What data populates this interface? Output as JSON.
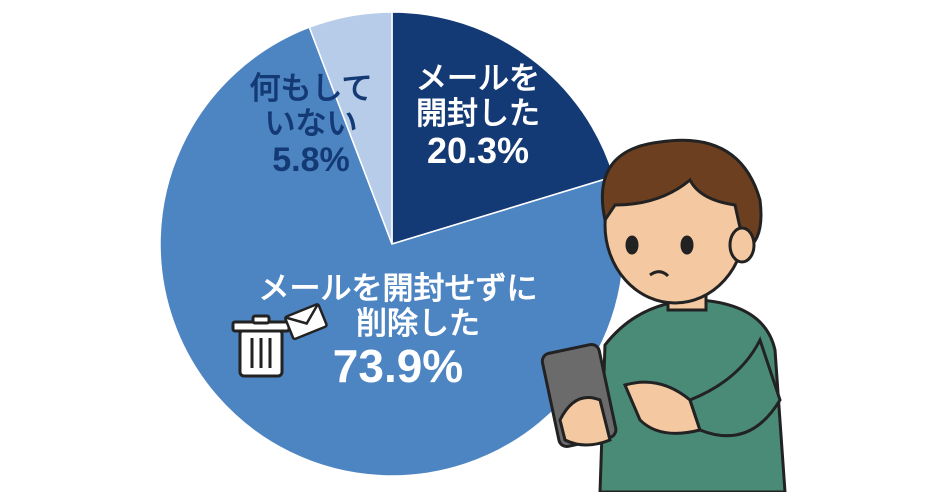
{
  "chart_data": {
    "type": "pie",
    "start": "top",
    "direction": "clockwise",
    "slices": [
      {
        "label_lines": [
          "メールを",
          "開封した"
        ],
        "value": 20.3,
        "display": "20.3%",
        "color": "#143a75"
      },
      {
        "label_lines": [
          "メールを開封せずに",
          "削除した"
        ],
        "value": 73.9,
        "display": "73.9%",
        "color": "#4d84c2"
      },
      {
        "label_lines": [
          "何もして",
          "いない"
        ],
        "value": 5.8,
        "display": "5.8%",
        "color": "#b7cce8"
      }
    ],
    "icons": [
      "trash-can-icon",
      "envelope-icon",
      "person-with-smartphone-illustration"
    ]
  }
}
